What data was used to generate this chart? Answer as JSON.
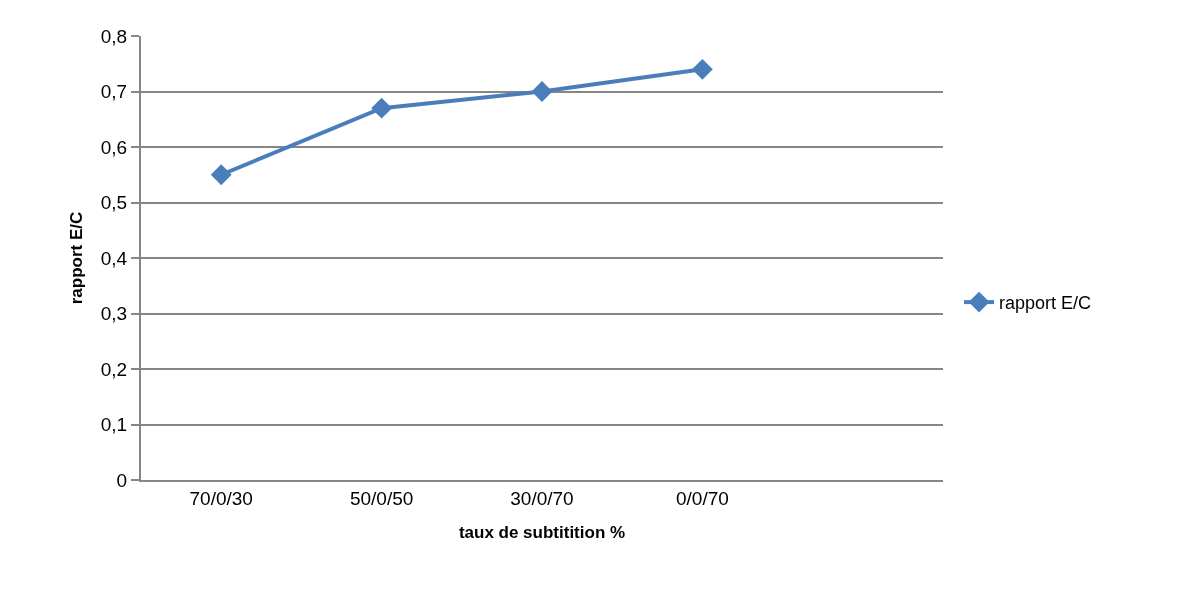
{
  "chart_data": {
    "type": "line",
    "xlabel": "taux de subtitition %",
    "ylabel": "rapport E/C",
    "categories": [
      "70/0/30",
      "50/0/50",
      "30/0/70",
      "0/0/70",
      null
    ],
    "series": [
      {
        "name": "rapport E/C",
        "color": "#4a7ebb",
        "values": [
          0.55,
          0.67,
          0.7,
          0.74,
          null
        ]
      }
    ],
    "ylim": [
      0,
      0.8
    ],
    "yticks": [
      0,
      {
        "value": 0.1,
        "label": "0,1"
      },
      {
        "value": 0.2,
        "label": "0,2"
      },
      {
        "value": 0.3,
        "label": "0,3"
      },
      {
        "value": 0.4,
        "label": "0,4"
      },
      {
        "value": 0.5,
        "label": "0,5"
      },
      {
        "value": 0.6,
        "label": "0,6"
      },
      {
        "value": 0.7,
        "label": "0,7"
      },
      {
        "value": 0.8,
        "label": "0,8"
      }
    ],
    "grid": "y",
    "legend": "right",
    "marker": "diamond",
    "line_style": "solid"
  }
}
